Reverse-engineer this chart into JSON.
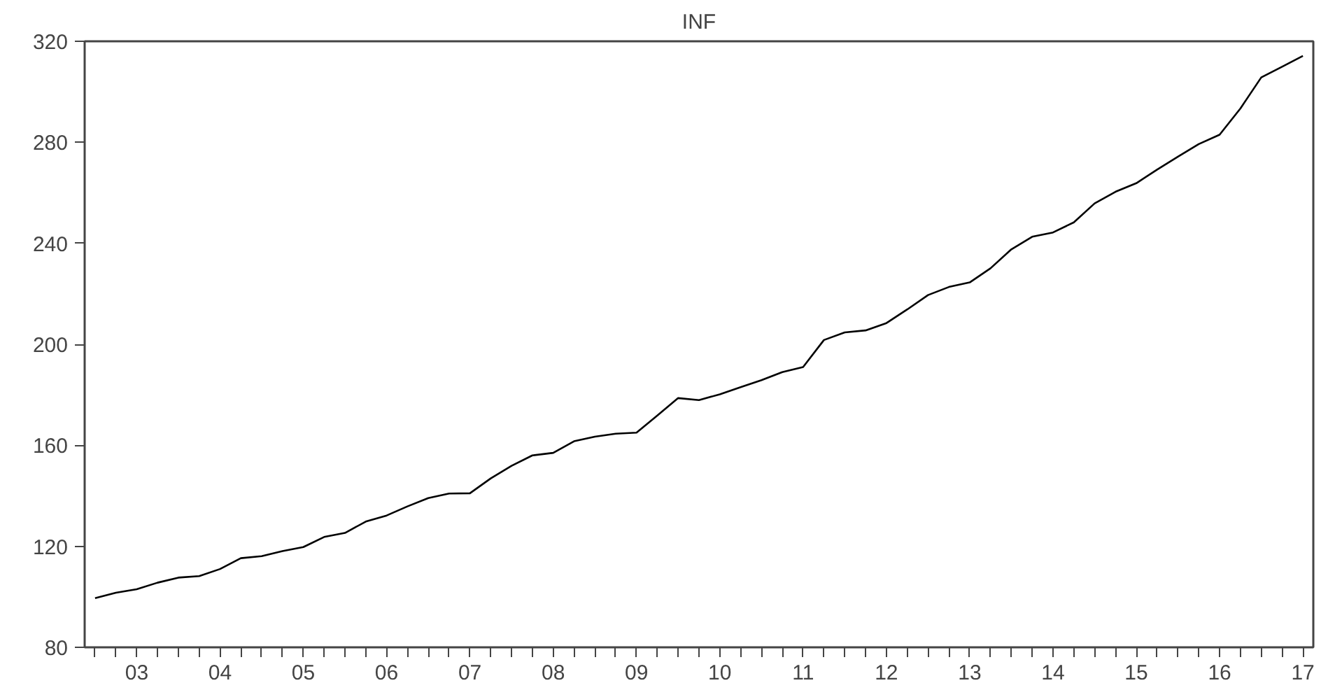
{
  "chart_data": {
    "type": "line",
    "title": "INF",
    "categories": [
      null,
      null,
      "03",
      null,
      null,
      null,
      "04",
      null,
      null,
      null,
      "05",
      null,
      null,
      null,
      "06",
      null,
      null,
      null,
      "07",
      null,
      null,
      null,
      "08",
      null,
      null,
      null,
      "09",
      null,
      null,
      null,
      "10",
      null,
      null,
      null,
      "11",
      null,
      null,
      null,
      "12",
      null,
      null,
      null,
      "13",
      null,
      null,
      null,
      "14",
      null,
      null,
      null,
      "15",
      null,
      null,
      null,
      "16",
      null,
      null,
      null,
      "17"
    ],
    "series": [
      {
        "color": "#000000",
        "values": [
          99.5,
          101.6,
          103.0,
          105.6,
          107.6,
          108.2,
          111.0,
          115.3,
          116.1,
          118.1,
          119.7,
          123.7,
          125.3,
          129.8,
          132.2,
          135.8,
          139.1,
          140.9,
          141.0,
          146.9,
          151.9,
          156.0,
          157.0,
          161.6,
          163.4,
          164.6,
          165.0,
          171.8,
          178.7,
          177.9,
          180.2,
          183.0,
          185.8,
          189.0,
          191.0,
          201.7,
          204.7,
          205.5,
          208.4,
          213.8,
          219.5,
          222.7,
          224.5,
          230.1,
          237.6,
          242.6,
          244.3,
          248.3,
          255.8,
          260.4,
          263.8,
          269.2,
          274.3,
          279.3,
          283.0,
          293.4,
          305.7,
          309.9,
          314.2
        ]
      }
    ],
    "ylim": [
      80,
      320
    ],
    "yticks": [
      80,
      120,
      160,
      200,
      240,
      280,
      320
    ],
    "grid": false
  }
}
